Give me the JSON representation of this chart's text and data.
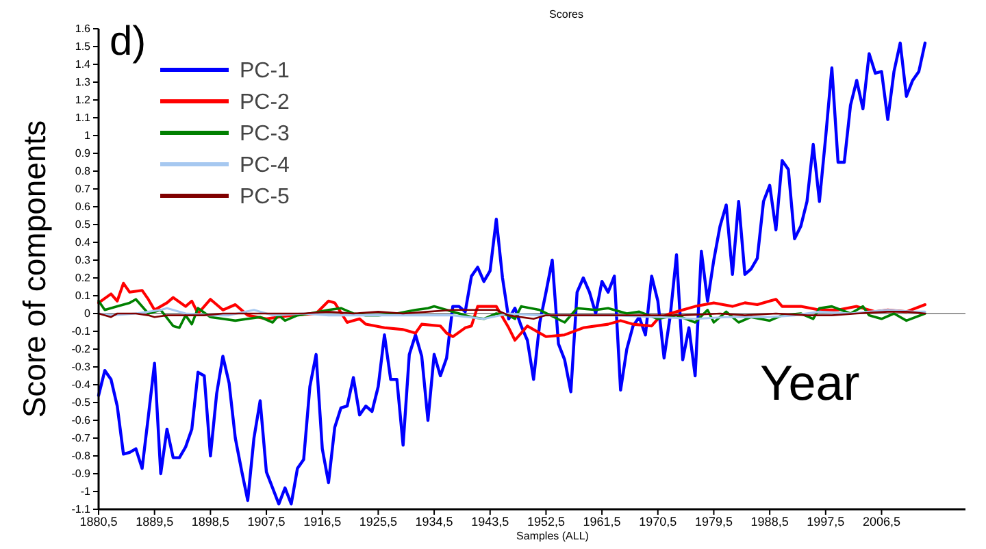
{
  "chart_data": {
    "type": "line",
    "title": "Scores",
    "xlabel": "Samples (ALL)",
    "ylabel": "Score of components",
    "annotations": [
      "d)",
      "Year"
    ],
    "x": [
      1880.5,
      1881.5,
      1882.5,
      1883.5,
      1884.5,
      1885.5,
      1886.5,
      1887.5,
      1888.5,
      1889.5,
      1890.5,
      1891.5,
      1892.5,
      1893.5,
      1894.5,
      1895.5,
      1896.5,
      1897.5,
      1898.5,
      1899.5,
      1900.5,
      1901.5,
      1902.5,
      1903.5,
      1904.5,
      1905.5,
      1906.5,
      1907.5,
      1908.5,
      1909.5,
      1910.5,
      1911.5,
      1912.5,
      1913.5,
      1914.5,
      1915.5,
      1916.5,
      1917.5,
      1918.5,
      1919.5,
      1920.5,
      1921.5,
      1922.5,
      1923.5,
      1924.5,
      1925.5,
      1926.5,
      1927.5,
      1928.5,
      1929.5,
      1930.5,
      1931.5,
      1932.5,
      1933.5,
      1934.5,
      1935.5,
      1936.5,
      1937.5,
      1938.5,
      1939.5,
      1940.5,
      1941.5,
      1942.5,
      1943.5,
      1944.5,
      1945.5,
      1946.5,
      1947.5,
      1948.5,
      1949.5,
      1950.5,
      1951.5,
      1952.5,
      1953.5,
      1954.5,
      1955.5,
      1956.5,
      1957.5,
      1958.5,
      1959.5,
      1960.5,
      1961.5,
      1962.5,
      1963.5,
      1964.5,
      1965.5,
      1966.5,
      1967.5,
      1968.5,
      1969.5,
      1970.5,
      1971.5,
      1972.5,
      1973.5,
      1974.5,
      1975.5,
      1976.5,
      1977.5,
      1978.5,
      1979.5,
      1980.5,
      1981.5,
      1982.5,
      1983.5,
      1984.5,
      1985.5,
      1986.5,
      1987.5,
      1988.5,
      1989.5,
      1990.5,
      1991.5,
      1992.5,
      1993.5,
      1994.5,
      1995.5,
      1996.5,
      1997.5,
      1998.5,
      1999.5,
      2000.5,
      2001.5,
      2002.5,
      2003.5,
      2004.5,
      2005.5,
      2006.5,
      2007.5,
      2008.5,
      2009.5,
      2010.5,
      2011.5,
      2012.5,
      2013.5
    ],
    "series": [
      {
        "name": "PC-1",
        "color": "#0000ff",
        "values": [
          -0.46,
          -0.32,
          -0.37,
          -0.52,
          -0.79,
          -0.78,
          -0.76,
          -0.87,
          -0.58,
          -0.28,
          -0.9,
          -0.65,
          -0.81,
          -0.81,
          -0.75,
          -0.65,
          -0.33,
          -0.35,
          -0.8,
          -0.45,
          -0.24,
          -0.39,
          -0.7,
          -0.88,
          -1.05,
          -0.7,
          -0.49,
          -0.89,
          -0.98,
          -1.07,
          -0.98,
          -1.07,
          -0.87,
          -0.82,
          -0.41,
          -0.23,
          -0.76,
          -0.95,
          -0.64,
          -0.53,
          -0.52,
          -0.36,
          -0.57,
          -0.52,
          -0.55,
          -0.41,
          -0.12,
          -0.37,
          -0.37,
          -0.74,
          -0.23,
          -0.12,
          -0.24,
          -0.6,
          -0.23,
          -0.35,
          -0.25,
          0.04,
          0.04,
          0.01,
          0.21,
          0.26,
          0.18,
          0.24,
          0.53,
          0.2,
          -0.03,
          0.03,
          -0.07,
          -0.15,
          -0.37,
          -0.05,
          0.12,
          0.3,
          -0.17,
          -0.26,
          -0.44,
          0.12,
          0.2,
          0.12,
          0,
          0.18,
          0.12,
          0.21,
          -0.43,
          -0.2,
          -0.07,
          -0.02,
          -0.12,
          0.21,
          0.07,
          -0.25,
          -0.01,
          0.33,
          -0.26,
          -0.08,
          -0.35,
          0.35,
          0.07,
          0.3,
          0.49,
          0.61,
          0.22,
          0.63,
          0.22,
          0.25,
          0.31,
          0.63,
          0.72,
          0.47,
          0.86,
          0.81,
          0.42,
          0.49,
          0.63,
          0.95,
          0.63,
          0.99,
          1.38,
          0.85,
          0.85,
          1.17,
          1.31,
          1.15,
          1.46,
          1.35,
          1.36,
          1.09,
          1.36,
          1.52,
          1.22,
          1.31,
          1.36,
          1.52
        ]
      },
      {
        "name": "PC-2",
        "color": "#ff0000",
        "x": [
          1880.5,
          1882.5,
          1883.5,
          1884.5,
          1885.5,
          1887.5,
          1888.5,
          1889.5,
          1891.5,
          1892.5,
          1894.5,
          1895.5,
          1896.5,
          1898.5,
          1900.5,
          1902.5,
          1904.5,
          1907.5,
          1911.5,
          1915.5,
          1917.5,
          1918.5,
          1920.5,
          1922.5,
          1923.5,
          1926.5,
          1929.5,
          1930.5,
          1931.5,
          1932.5,
          1935.5,
          1936.5,
          1937.5,
          1939.5,
          1940.5,
          1941.5,
          1944.5,
          1946.5,
          1947.5,
          1949.5,
          1952.5,
          1955.5,
          1958.5,
          1962.5,
          1964.5,
          1966.5,
          1969.5,
          1970.5,
          1972.5,
          1974.5,
          1976.5,
          1979.5,
          1982.5,
          1984.5,
          1986.5,
          1988.5,
          1989.5,
          1990.5,
          1993.5,
          1996.5,
          1999.5,
          2002.5,
          2005.5,
          2007.5,
          2010.5,
          2013.5
        ],
        "values": [
          0.06,
          0.11,
          0.07,
          0.17,
          0.12,
          0.13,
          0.08,
          0.02,
          0.06,
          0.09,
          0.04,
          0.07,
          0,
          0.08,
          0.02,
          0.05,
          -0.01,
          -0.03,
          -0.01,
          0,
          0.07,
          0.06,
          -0.05,
          -0.03,
          -0.06,
          -0.08,
          -0.09,
          -0.1,
          -0.11,
          -0.06,
          -0.07,
          -0.11,
          -0.13,
          -0.08,
          -0.07,
          0.04,
          0.04,
          -0.08,
          -0.15,
          -0.07,
          -0.13,
          -0.12,
          -0.08,
          -0.06,
          -0.04,
          -0.06,
          -0.07,
          -0.03,
          0,
          0.02,
          0.04,
          0.06,
          0.04,
          0.06,
          0.05,
          0.07,
          0.08,
          0.04,
          0.04,
          0.02,
          0.02,
          0.04,
          0.01,
          0.02,
          0.01,
          0.05
        ]
      },
      {
        "name": "PC-3",
        "color": "#008000",
        "x": [
          1880.5,
          1881.5,
          1883.5,
          1885.5,
          1886.5,
          1888.5,
          1890.5,
          1892.5,
          1893.5,
          1894.5,
          1895.5,
          1896.5,
          1898.5,
          1900.5,
          1902.5,
          1904.5,
          1906.5,
          1908.5,
          1909.5,
          1910.5,
          1912.5,
          1914.5,
          1917.5,
          1919.5,
          1921.5,
          1923.5,
          1925.5,
          1928.5,
          1931.5,
          1933.5,
          1934.5,
          1936.5,
          1938.5,
          1940.5,
          1942.5,
          1944.5,
          1946.5,
          1947.5,
          1948.5,
          1951.5,
          1955.5,
          1957.5,
          1960.5,
          1962.5,
          1965.5,
          1967.5,
          1970.5,
          1973.5,
          1976.5,
          1978.5,
          1979.5,
          1981.5,
          1983.5,
          1985.5,
          1988.5,
          1990.5,
          1993.5,
          1995.5,
          1996.5,
          1998.5,
          2001.5,
          2003.5,
          2004.5,
          2006.5,
          2008.5,
          2010.5,
          2013.5
        ],
        "values": [
          0.07,
          0.02,
          0.04,
          0.06,
          0.08,
          0,
          0.02,
          -0.07,
          -0.08,
          -0.01,
          -0.06,
          0.03,
          -0.02,
          -0.03,
          -0.04,
          -0.03,
          -0.02,
          -0.05,
          -0.01,
          -0.04,
          -0.01,
          0,
          0.02,
          0.03,
          0,
          -0.01,
          -0.01,
          0,
          0.02,
          0.03,
          0.04,
          0.02,
          0,
          -0.02,
          -0.03,
          0,
          -0.01,
          -0.03,
          0.04,
          0.02,
          -0.05,
          0.03,
          0.02,
          0.03,
          0,
          0.01,
          -0.03,
          -0.01,
          -0.05,
          0.02,
          -0.05,
          0.01,
          -0.05,
          -0.02,
          -0.04,
          -0.01,
          0,
          -0.03,
          0.03,
          0.04,
          0,
          0.04,
          -0.01,
          -0.03,
          0,
          -0.04,
          0
        ]
      },
      {
        "name": "PC-4",
        "color": "#a6c8f0",
        "x": [
          1880.5,
          1882.5,
          1886.5,
          1890.5,
          1891.5,
          1894.5,
          1898.5,
          1901.5,
          1905.5,
          1908.5,
          1913.5,
          1917.5,
          1921.5,
          1925.5,
          1929.5,
          1933.5,
          1937.5,
          1942.5,
          1946.5,
          1951.5,
          1955.5,
          1963.5,
          1970.5,
          1976.5,
          1981.5,
          1985.5,
          1988.5,
          1992.5,
          1996.5,
          2001.5,
          2007.5,
          2011.5,
          2013.5
        ],
        "values": [
          0,
          -0.01,
          0,
          0.02,
          0.03,
          0,
          -0.01,
          -0.01,
          0.02,
          -0.01,
          0,
          -0.01,
          -0.01,
          -0.01,
          -0.01,
          -0.01,
          -0.01,
          -0.03,
          0,
          -0.01,
          -0.01,
          -0.01,
          -0.02,
          -0.03,
          -0.02,
          -0.02,
          -0.02,
          -0.01,
          0.01,
          0,
          0.02,
          0.01,
          0.01
        ]
      },
      {
        "name": "PC-5",
        "color": "#800000",
        "x": [
          1880.5,
          1882.5,
          1883.5,
          1886.5,
          1888.5,
          1889.5,
          1891.5,
          1894.5,
          1897.5,
          1900.5,
          1904.5,
          1908.5,
          1913.5,
          1917.5,
          1921.5,
          1925.5,
          1929.5,
          1933.5,
          1937.5,
          1942.5,
          1944.5,
          1946.5,
          1948.5,
          1950.5,
          1952.5,
          1957.5,
          1963.5,
          1970.5,
          1974.5,
          1980.5,
          1984.5,
          1989.5,
          1994.5,
          1998.5,
          2002.5,
          2007.5,
          2010.5,
          2013.5
        ],
        "values": [
          0,
          -0.02,
          0,
          0,
          -0.01,
          -0.02,
          -0.01,
          -0.01,
          -0.01,
          0,
          0,
          0,
          0,
          0.01,
          0,
          0.01,
          0,
          0.01,
          0.02,
          0.02,
          0.02,
          -0.01,
          -0.02,
          -0.03,
          -0.01,
          -0.01,
          -0.01,
          -0.01,
          -0.01,
          0,
          -0.01,
          0,
          -0.01,
          -0.01,
          0,
          0.01,
          0.01,
          0
        ]
      }
    ],
    "xlim": [
      1880.5,
      2020
    ],
    "xticks": [
      {
        "value": 1880.5,
        "label": "1880,5"
      },
      {
        "value": 1889.5,
        "label": "1889,5"
      },
      {
        "value": 1898.5,
        "label": "1898,5"
      },
      {
        "value": 1907.5,
        "label": "1907,5"
      },
      {
        "value": 1916.5,
        "label": "1916,5"
      },
      {
        "value": 1925.5,
        "label": "1925,5"
      },
      {
        "value": 1934.5,
        "label": "1934,5"
      },
      {
        "value": 1943.5,
        "label": "1943,5"
      },
      {
        "value": 1952.5,
        "label": "1952,5"
      },
      {
        "value": 1961.5,
        "label": "1961,5"
      },
      {
        "value": 1970.5,
        "label": "1970,5"
      },
      {
        "value": 1979.5,
        "label": "1979,5"
      },
      {
        "value": 1988.5,
        "label": "1988,5"
      },
      {
        "value": 1997.5,
        "label": "1997,5"
      },
      {
        "value": 2006.5,
        "label": "2006,5"
      }
    ],
    "ylim": [
      -1.1,
      1.6
    ],
    "yticks": [
      -1.1,
      -1,
      -0.9,
      -0.8,
      -0.7,
      -0.6,
      -0.5,
      -0.4,
      -0.3,
      -0.2,
      -0.1,
      0,
      0.1,
      0.2,
      0.3,
      0.4,
      0.5,
      0.6,
      0.7,
      0.8,
      0.9,
      1,
      1.1,
      1.2,
      1.3,
      1.4,
      1.5,
      1.6
    ],
    "ref_lines": [
      {
        "axis": "y",
        "value": 0,
        "color": "#999999"
      }
    ],
    "legend": "top left",
    "marker": "none",
    "line_style": "solid",
    "grid": false
  }
}
